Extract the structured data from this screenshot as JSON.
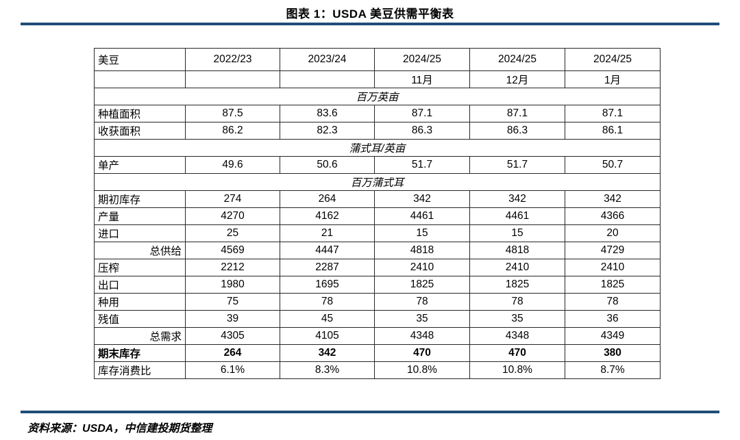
{
  "title": "图表 1：USDA 美豆供需平衡表",
  "source": "资料来源：USDA，中信建投期货整理",
  "colors": {
    "accent_rule": "#1f4e79",
    "table_border": "#262626",
    "text": "#000000"
  },
  "table": {
    "corner_label": "美豆",
    "columns": [
      "2022/23",
      "2023/24",
      "2024/25",
      "2024/25",
      "2024/25"
    ],
    "sub_columns": [
      "",
      "",
      "11月",
      "12月",
      "1月"
    ],
    "sections": [
      {
        "unit": "百万英亩",
        "rows": [
          {
            "label": "种植面积",
            "values": [
              "87.5",
              "83.6",
              "87.1",
              "87.1",
              "87.1"
            ]
          },
          {
            "label": "收获面积",
            "values": [
              "86.2",
              "82.3",
              "86.3",
              "86.3",
              "86.1"
            ]
          }
        ]
      },
      {
        "unit": "蒲式耳/英亩",
        "rows": [
          {
            "label": "单产",
            "values": [
              "49.6",
              "50.6",
              "51.7",
              "51.7",
              "50.7"
            ]
          }
        ]
      },
      {
        "unit": "百万蒲式耳",
        "rows": [
          {
            "label": "期初库存",
            "values": [
              "274",
              "264",
              "342",
              "342",
              "342"
            ]
          },
          {
            "label": "产量",
            "values": [
              "4270",
              "4162",
              "4461",
              "4461",
              "4366"
            ]
          },
          {
            "label": "进口",
            "values": [
              "25",
              "21",
              "15",
              "15",
              "20"
            ]
          },
          {
            "label": "总供给",
            "values": [
              "4569",
              "4447",
              "4818",
              "4818",
              "4729"
            ],
            "label_align": "right"
          },
          {
            "label": "压榨",
            "values": [
              "2212",
              "2287",
              "2410",
              "2410",
              "2410"
            ]
          },
          {
            "label": "出口",
            "values": [
              "1980",
              "1695",
              "1825",
              "1825",
              "1825"
            ]
          },
          {
            "label": "种用",
            "values": [
              "75",
              "78",
              "78",
              "78",
              "78"
            ]
          },
          {
            "label": "残值",
            "values": [
              "39",
              "45",
              "35",
              "35",
              "36"
            ]
          },
          {
            "label": "总需求",
            "values": [
              "4305",
              "4105",
              "4348",
              "4348",
              "4349"
            ],
            "label_align": "right"
          },
          {
            "label": "期末库存",
            "values": [
              "264",
              "342",
              "470",
              "470",
              "380"
            ],
            "bold": true
          },
          {
            "label": "库存消费比",
            "values": [
              "6.1%",
              "8.3%",
              "10.8%",
              "10.8%",
              "8.7%"
            ]
          }
        ]
      }
    ]
  }
}
